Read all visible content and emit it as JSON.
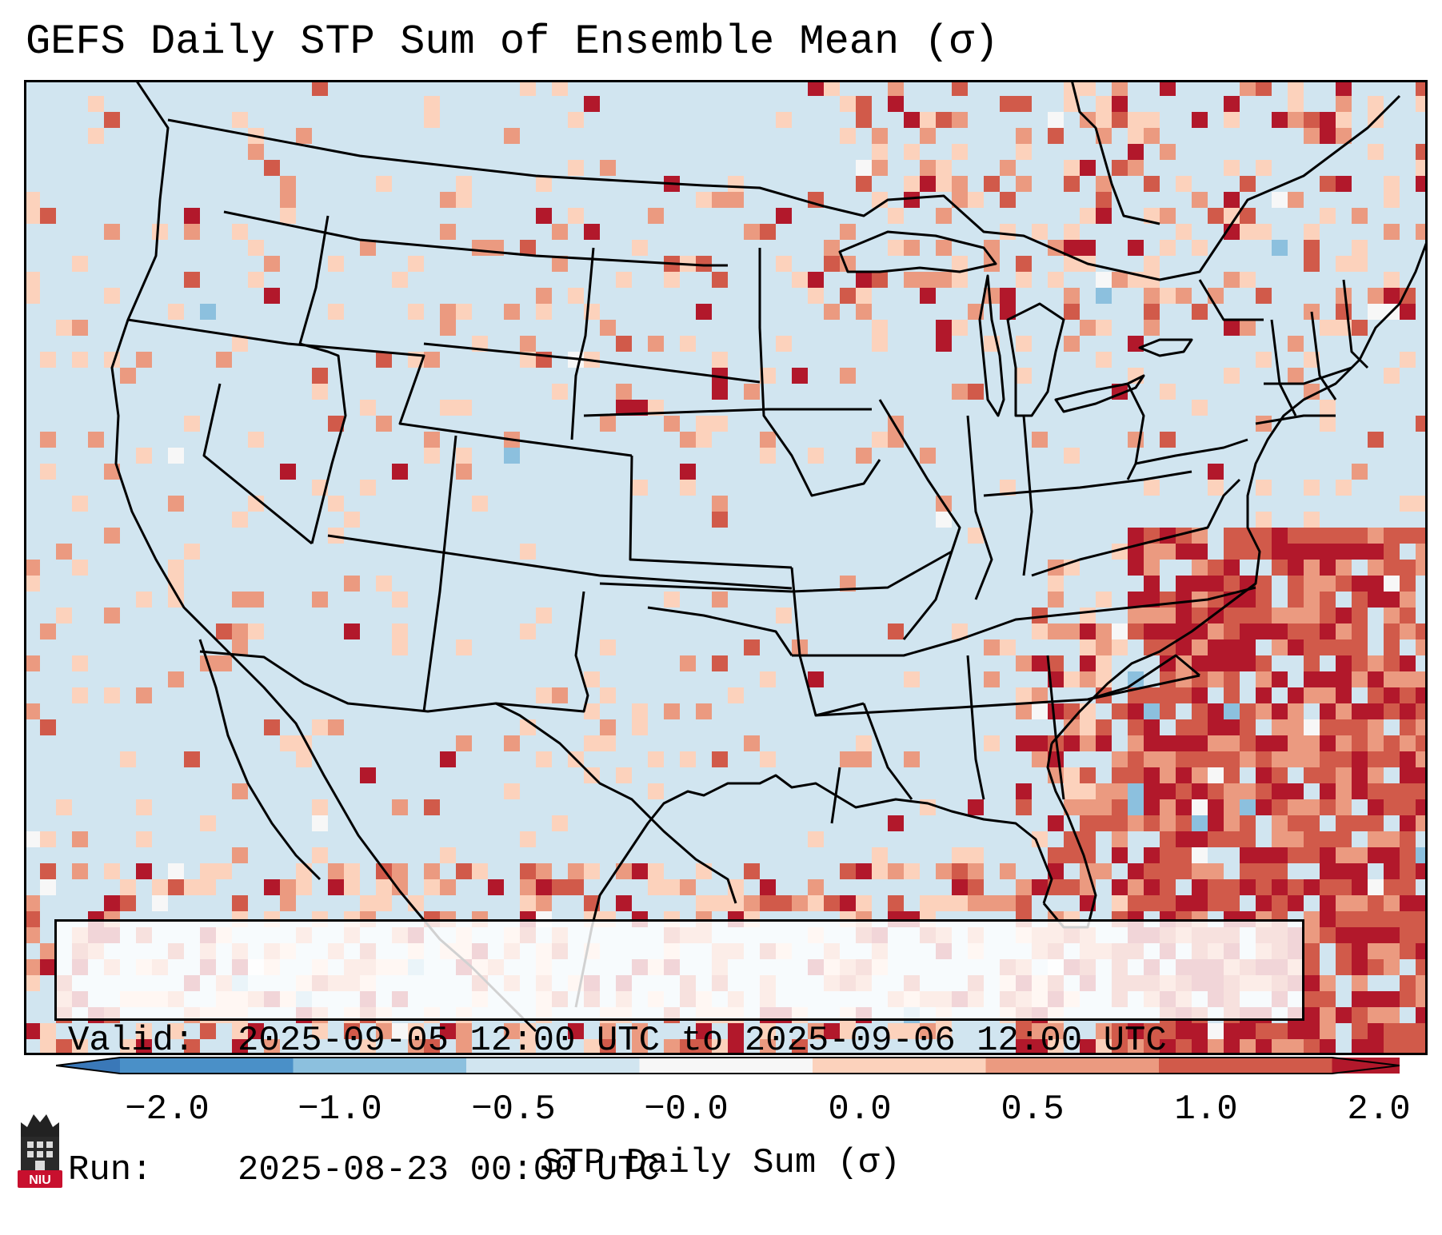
{
  "title": "GEFS Daily STP Sum of Ensemble Mean (σ)",
  "valid_label": "Valid:",
  "valid_value": "2025-09-05 12:00 UTC to 2025-09-06 12:00 UTC",
  "run_label": "Run:",
  "run_value": "2025-08-23 00:00 UTC",
  "colorbar": {
    "label": "STP Daily Sum (σ)",
    "ticks": [
      "−2.0",
      "−1.0",
      "−0.5",
      "−0.0",
      "0.0",
      "0.5",
      "1.0",
      "2.0"
    ],
    "bin_colors": [
      "#4a90c8",
      "#8cc0de",
      "#d1e5f0",
      "#f7f7f7",
      "#fcd2bc",
      "#eb9a80",
      "#d15a4a",
      "#b2182b"
    ],
    "under_color": "#3a78b8",
    "over_color": "#b2182b",
    "background_color": "#d1e5f0"
  },
  "logo_text": "NIU"
}
